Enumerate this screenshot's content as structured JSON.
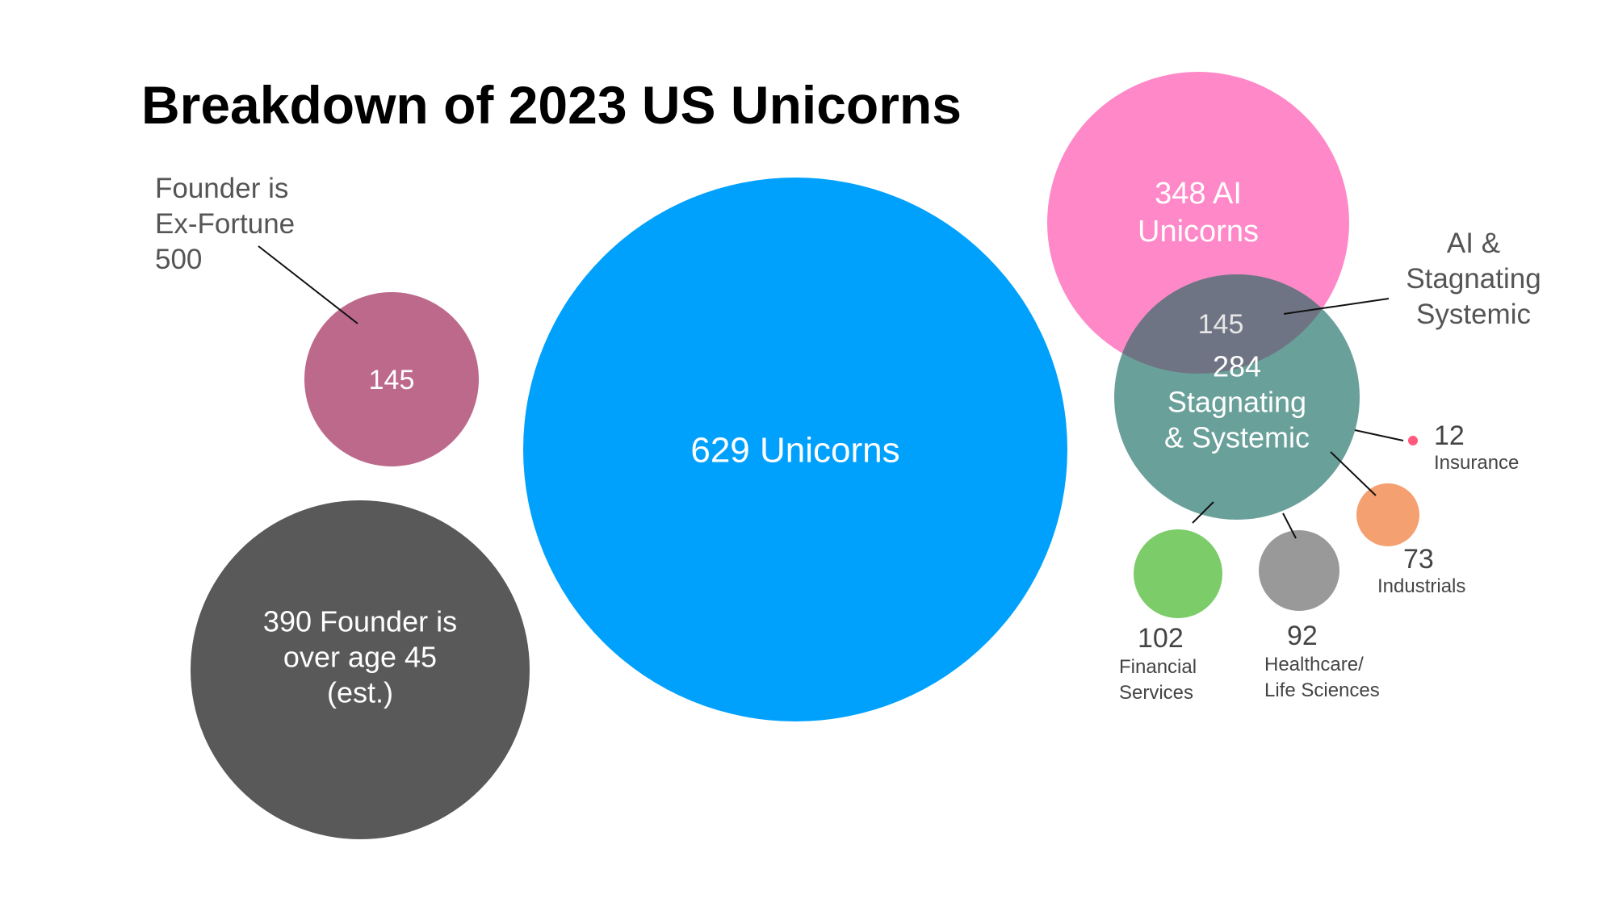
{
  "chart_data": {
    "type": "bubble",
    "title": "Breakdown of 2023 US  Unicorns",
    "bubbles": [
      {
        "id": "total",
        "value": 629,
        "label": [
          "629 Unicorns"
        ],
        "color": "#00a1fd"
      },
      {
        "id": "ai",
        "value": 348,
        "label": [
          "348 AI",
          "Unicorns"
        ],
        "color": "#ff88c8"
      },
      {
        "id": "stagnating",
        "value": 284,
        "label": [
          "284",
          "Stagnating",
          "& Systemic"
        ],
        "color": "#6aa09a"
      },
      {
        "id": "ai-stagnating-overlap",
        "value": 145,
        "label": [
          "145"
        ],
        "color": "#6f7484"
      },
      {
        "id": "ex-fortune",
        "value": 145,
        "label": [
          "145"
        ],
        "color": "#bd698b"
      },
      {
        "id": "over-45",
        "value": 390,
        "label": [
          "390 Founder is",
          "over age 45",
          "(est.)"
        ],
        "color": "#595959"
      },
      {
        "id": "financial",
        "value": 102,
        "label": [],
        "color": "#7ccc6a"
      },
      {
        "id": "healthcare",
        "value": 92,
        "label": [],
        "color": "#999999"
      },
      {
        "id": "industrials",
        "value": 73,
        "label": [],
        "color": "#f4a070"
      },
      {
        "id": "insurance",
        "value": 12,
        "label": [],
        "color": "#ff5a7e"
      }
    ],
    "callouts": [
      {
        "id": "ex-fortune-callout",
        "target": "ex-fortune",
        "lines": [
          "Founder is",
          "Ex-Fortune",
          "500"
        ]
      },
      {
        "id": "overlap-callout",
        "target": "ai-stagnating-overlap",
        "lines": [
          "AI &",
          "Stagnating",
          "Systemic"
        ]
      },
      {
        "id": "insurance-callout",
        "target": "insurance",
        "value": "12",
        "lines": [
          "Insurance"
        ]
      },
      {
        "id": "industrials-callout",
        "target": "industrials",
        "value": "73",
        "lines": [
          "Industrials"
        ]
      },
      {
        "id": "financial-callout",
        "target": "financial",
        "value": "102",
        "lines": [
          "Financial",
          "Services"
        ]
      },
      {
        "id": "healthcare-callout",
        "target": "healthcare",
        "value": "92",
        "lines": [
          "Healthcare/",
          "Life Sciences"
        ]
      }
    ]
  }
}
